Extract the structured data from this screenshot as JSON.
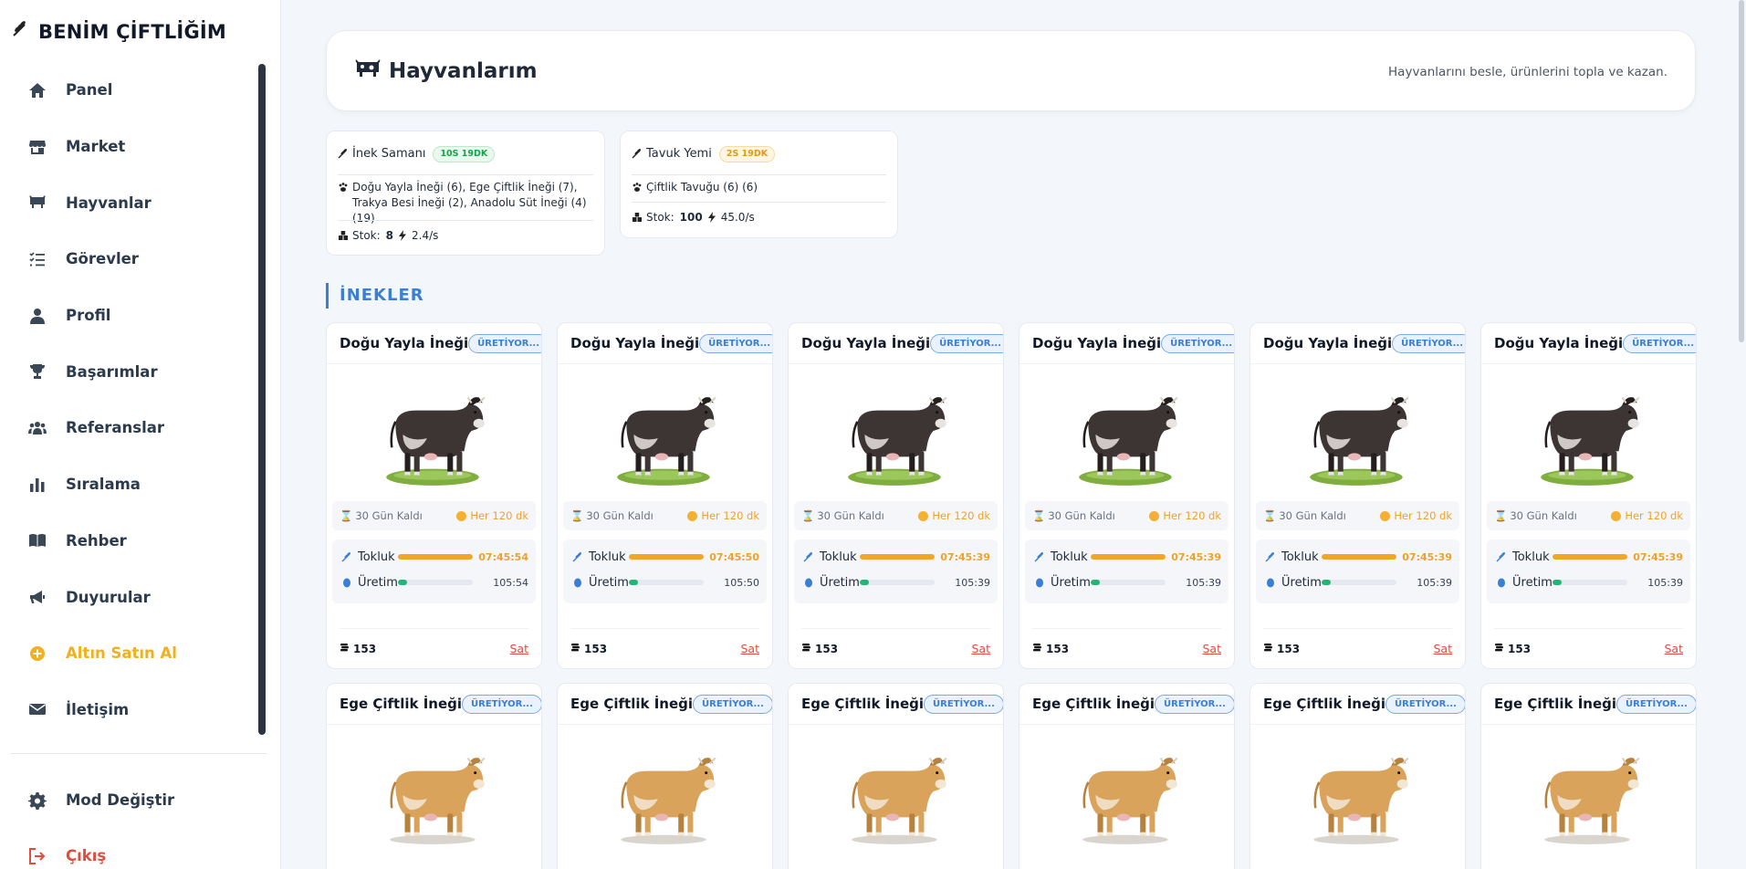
{
  "brand": "BENİM ÇİFTLİĞİM",
  "nav": [
    {
      "label": "Panel",
      "icon": "home-icon"
    },
    {
      "label": "Market",
      "icon": "store-icon"
    },
    {
      "label": "Hayvanlar",
      "icon": "cow-icon"
    },
    {
      "label": "Görevler",
      "icon": "tasks-icon"
    },
    {
      "label": "Profil",
      "icon": "user-icon"
    },
    {
      "label": "Başarımlar",
      "icon": "trophy-icon"
    },
    {
      "label": "Referanslar",
      "icon": "users-icon"
    },
    {
      "label": "Sıralama",
      "icon": "chart-icon"
    },
    {
      "label": "Rehber",
      "icon": "book-icon"
    },
    {
      "label": "Duyurular",
      "icon": "megaphone-icon"
    },
    {
      "label": "Altın Satın Al",
      "icon": "coin-icon"
    },
    {
      "label": "İletişim",
      "icon": "mail-icon"
    }
  ],
  "bottom_nav": [
    {
      "label": "Mod Değiştir",
      "icon": "gear-icon"
    },
    {
      "label": "Çıkış",
      "icon": "logout-icon"
    }
  ],
  "header": {
    "title": "Hayvanlarım",
    "subtitle": "Hayvanlarını besle, ürünlerini topla ve kazan."
  },
  "feeds": [
    {
      "name": "İnek Samanı",
      "badge": "10S 19DK",
      "animals": "Doğu Yayla İneği (6), Ege Çiftlik İneği (7), Trakya Besi İneği (2), Anadolu Süt İneği (4) (19)",
      "stock_label": "Stok:",
      "stock": "8",
      "rate": "2.4/s"
    },
    {
      "name": "Tavuk Yemi",
      "badge": "2S 19DK",
      "animals": "Çiftlik Tavuğu (6) (6)",
      "stock_label": "Stok:",
      "stock": "100",
      "rate": "45.0/s"
    }
  ],
  "section_title": "İNEKLER",
  "labels": {
    "days": "30 Gün Kaldı",
    "interval": "Her 120 dk",
    "tokluk": "Tokluk",
    "uretim": "Üretim",
    "price": "153",
    "sell": "Sat",
    "status": "ÜRETİYOR..."
  },
  "cows_row1": [
    {
      "name": "Doğu Yayla İneği",
      "food_time": "07:45:54",
      "prod_time": "105:54",
      "food_pct": 100,
      "prod_pct": 12
    },
    {
      "name": "Doğu Yayla İneği",
      "food_time": "07:45:50",
      "prod_time": "105:50",
      "food_pct": 100,
      "prod_pct": 12
    },
    {
      "name": "Doğu Yayla İneği",
      "food_time": "07:45:39",
      "prod_time": "105:39",
      "food_pct": 100,
      "prod_pct": 12
    },
    {
      "name": "Doğu Yayla İneği",
      "food_time": "07:45:39",
      "prod_time": "105:39",
      "food_pct": 100,
      "prod_pct": 12
    },
    {
      "name": "Doğu Yayla İneği",
      "food_time": "07:45:39",
      "prod_time": "105:39",
      "food_pct": 100,
      "prod_pct": 12
    },
    {
      "name": "Doğu Yayla İneği",
      "food_time": "07:45:39",
      "prod_time": "105:39",
      "food_pct": 100,
      "prod_pct": 12
    }
  ],
  "cows_row2": [
    {
      "name": "Ege Çiftlik İneği"
    },
    {
      "name": "Ege Çiftlik İneği"
    },
    {
      "name": "Ege Çiftlik İneği"
    },
    {
      "name": "Ege Çiftlik İneği"
    },
    {
      "name": "Ege Çiftlik İneği"
    },
    {
      "name": "Ege Çiftlik İneği"
    }
  ],
  "colors": {
    "accent": "#3b7fd4",
    "gold": "#f2b01e",
    "danger": "#e14c3d",
    "food": "#f2a628",
    "production": "#22b573",
    "dark_cow": "#3d3434",
    "tan_cow": "#d9a35c"
  }
}
